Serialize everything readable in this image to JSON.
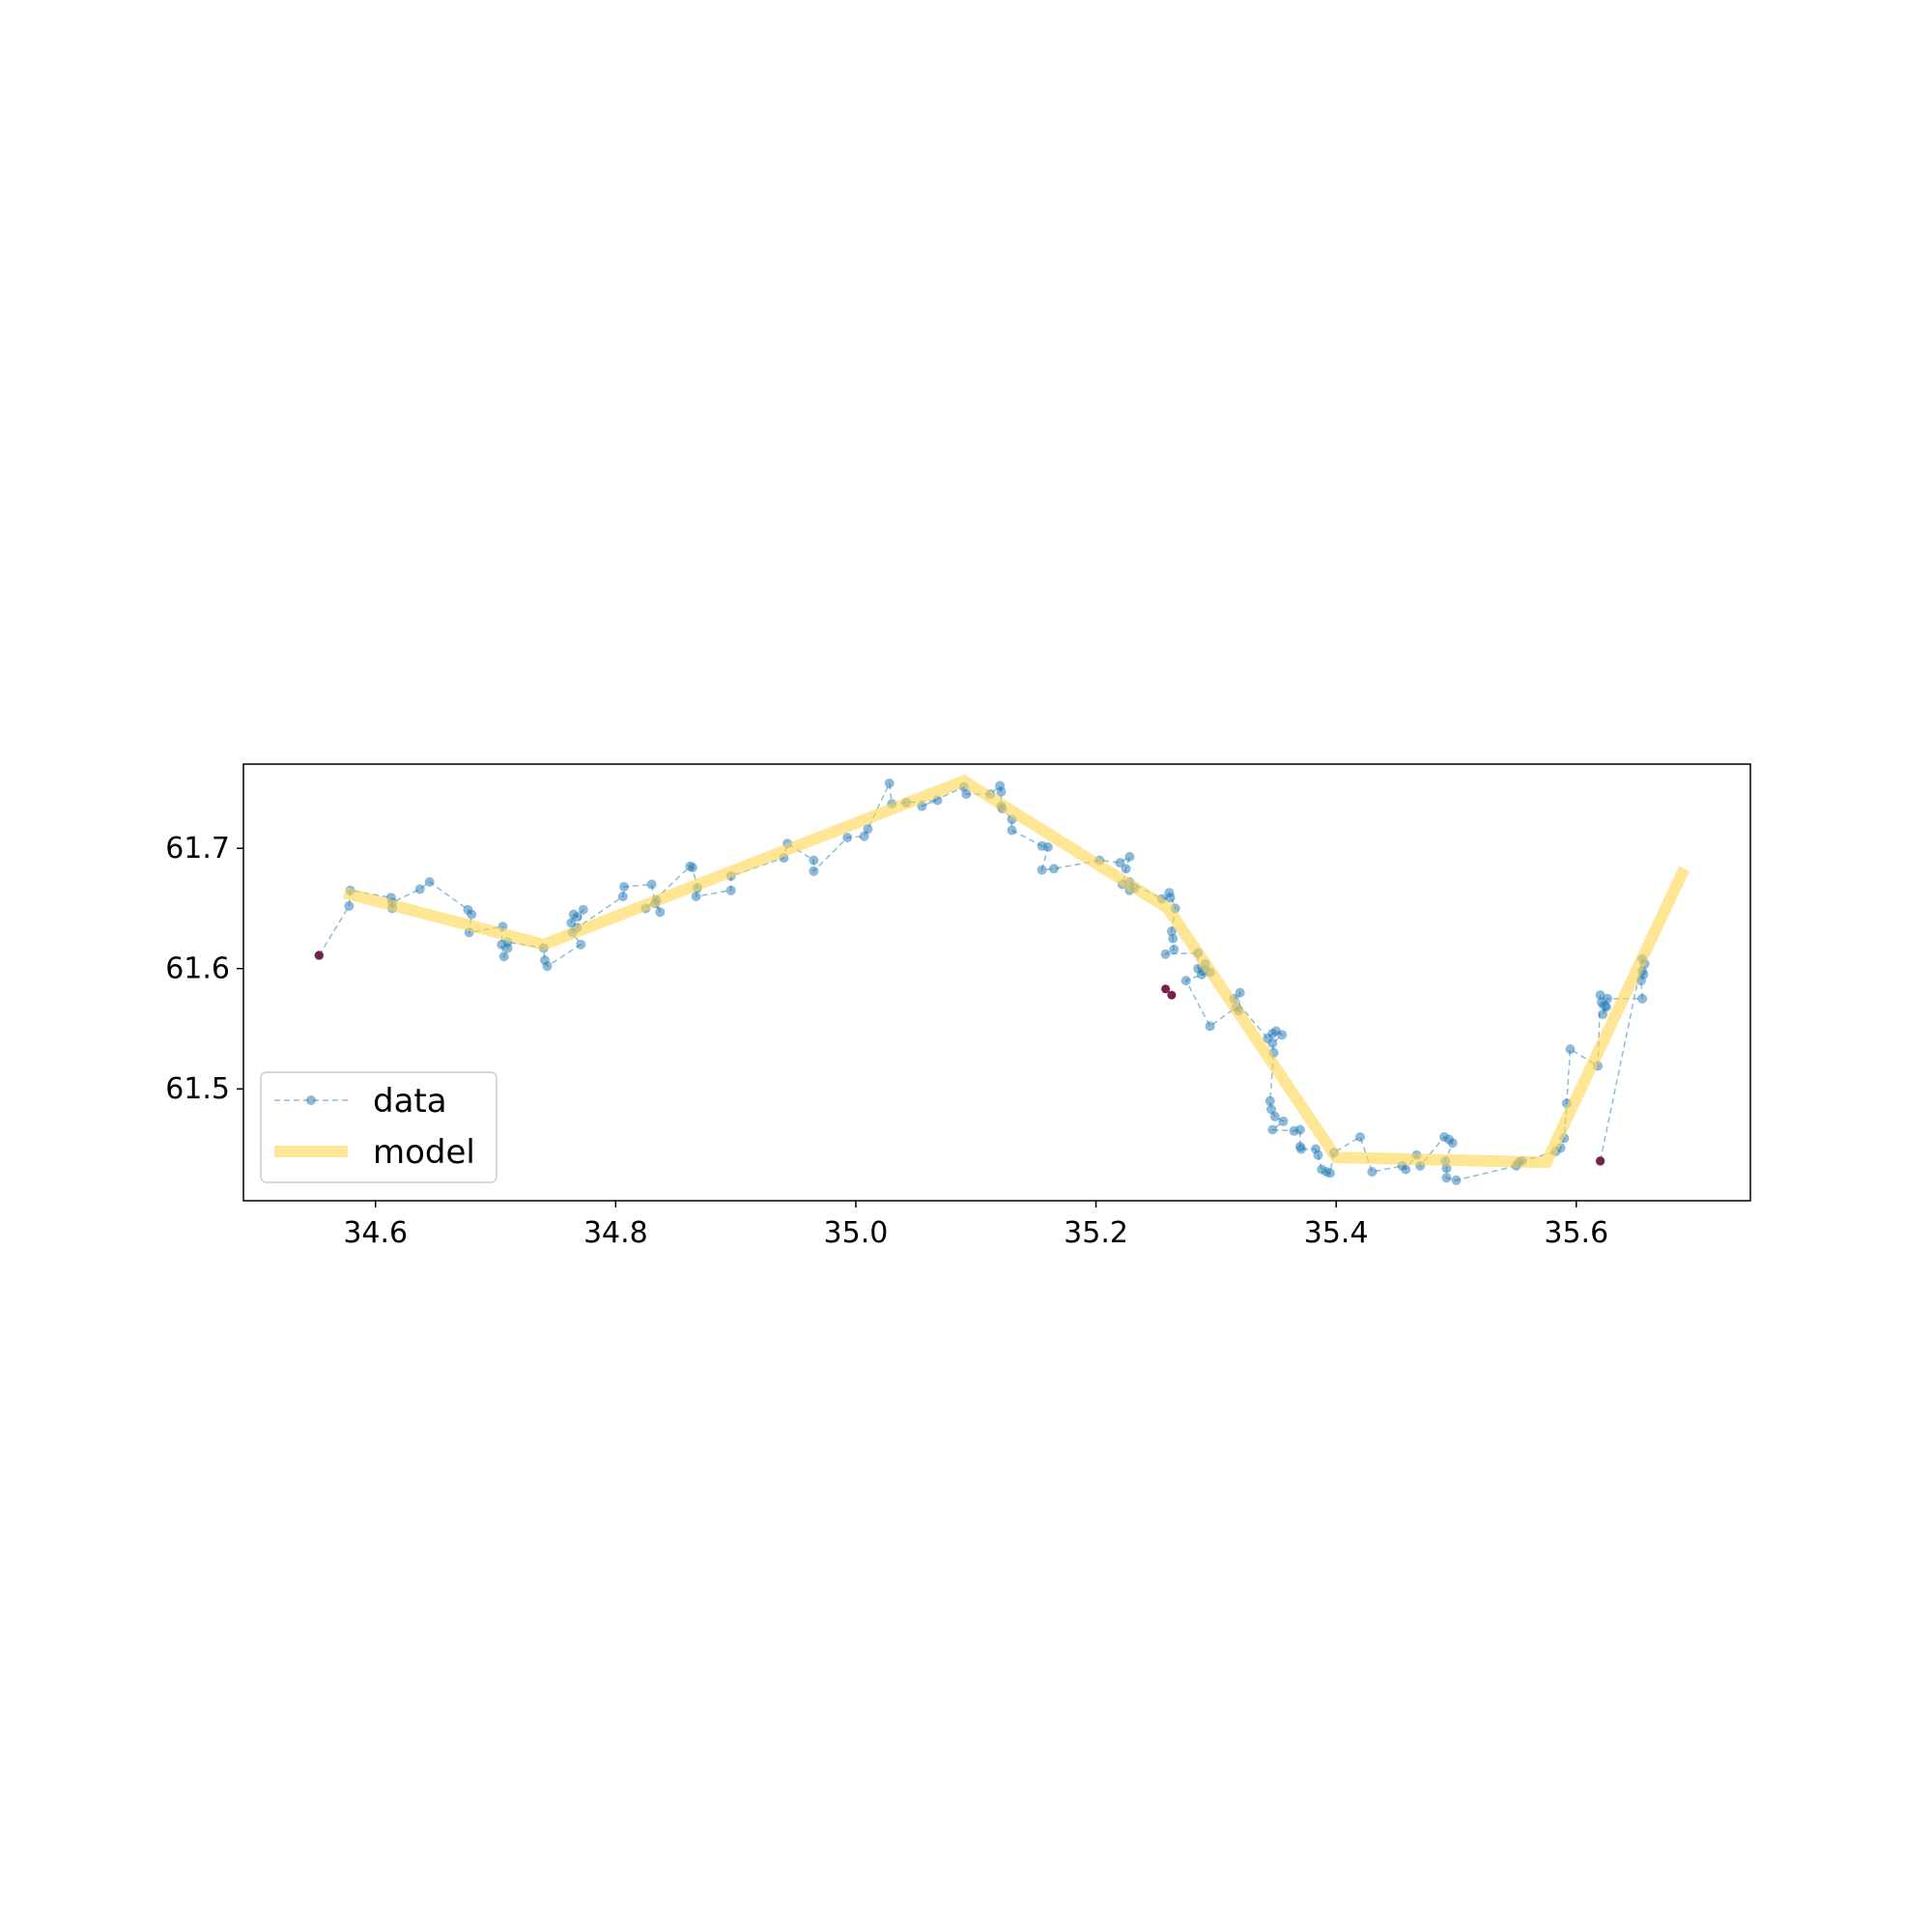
{
  "chart_data": {
    "type": "line",
    "title": "",
    "xlabel": "",
    "ylabel": "",
    "xlim": [
      34.49,
      35.745
    ],
    "ylim": [
      61.407,
      61.77
    ],
    "x_ticks": [
      34.6,
      34.8,
      35.0,
      35.2,
      35.4,
      35.6
    ],
    "x_tick_labels": [
      "34.6",
      "34.8",
      "35.0",
      "35.2",
      "35.4",
      "35.6"
    ],
    "y_ticks": [
      61.5,
      61.6,
      61.7
    ],
    "y_tick_labels": [
      "61.5",
      "61.6",
      "61.7"
    ],
    "grid": false,
    "legend": {
      "position": "lower-left",
      "entries": [
        "data",
        "model"
      ]
    },
    "colors": {
      "data": "#1f77b4",
      "model": "#ffd54f",
      "outliers": "#7b1f4b"
    },
    "series": [
      {
        "name": "data",
        "style": "dashed line with circle markers",
        "points": [
          [
            34.553,
            61.611
          ],
          [
            34.578,
            61.652
          ],
          [
            34.579,
            61.665
          ],
          [
            34.613,
            61.659
          ],
          [
            34.614,
            61.65
          ],
          [
            34.614,
            61.655
          ],
          [
            34.637,
            61.666
          ],
          [
            34.645,
            61.672
          ],
          [
            34.677,
            61.649
          ],
          [
            34.68,
            61.645
          ],
          [
            34.678,
            61.63
          ],
          [
            34.706,
            61.635
          ],
          [
            34.705,
            61.62
          ],
          [
            34.707,
            61.61
          ],
          [
            34.71,
            61.617
          ],
          [
            34.71,
            61.622
          ],
          [
            34.74,
            61.617
          ],
          [
            34.741,
            61.607
          ],
          [
            34.743,
            61.602
          ],
          [
            34.771,
            61.62
          ],
          [
            34.764,
            61.63
          ],
          [
            34.763,
            61.638
          ],
          [
            34.765,
            61.645
          ],
          [
            34.768,
            61.643
          ],
          [
            34.773,
            61.649
          ],
          [
            34.768,
            61.634
          ],
          [
            34.806,
            61.66
          ],
          [
            34.807,
            61.668
          ],
          [
            34.83,
            61.67
          ],
          [
            34.833,
            61.654
          ],
          [
            34.837,
            61.647
          ],
          [
            34.834,
            61.657
          ],
          [
            34.825,
            61.65
          ],
          [
            34.862,
            61.685
          ],
          [
            34.864,
            61.684
          ],
          [
            34.868,
            61.667
          ],
          [
            34.867,
            61.66
          ],
          [
            34.896,
            61.665
          ],
          [
            34.896,
            61.677
          ],
          [
            34.94,
            61.692
          ],
          [
            34.943,
            61.704
          ],
          [
            34.965,
            61.69
          ],
          [
            34.965,
            61.681
          ],
          [
            34.993,
            61.709
          ],
          [
            35.007,
            61.71
          ],
          [
            35.01,
            61.716
          ],
          [
            35.028,
            61.754
          ],
          [
            35.03,
            61.737
          ],
          [
            35.042,
            61.738
          ],
          [
            35.068,
            61.74
          ],
          [
            35.055,
            61.735
          ],
          [
            35.09,
            61.751
          ],
          [
            35.092,
            61.745
          ],
          [
            35.112,
            61.745
          ],
          [
            35.12,
            61.752
          ],
          [
            35.121,
            61.747
          ],
          [
            35.121,
            61.735
          ],
          [
            35.122,
            61.733
          ],
          [
            35.13,
            61.724
          ],
          [
            35.13,
            61.715
          ],
          [
            35.155,
            61.702
          ],
          [
            35.16,
            61.701
          ],
          [
            35.155,
            61.682
          ],
          [
            35.165,
            61.683
          ],
          [
            35.203,
            61.69
          ],
          [
            35.22,
            61.688
          ],
          [
            35.228,
            61.693
          ],
          [
            35.225,
            61.683
          ],
          [
            35.222,
            61.67
          ],
          [
            35.228,
            61.665
          ],
          [
            35.232,
            61.667
          ],
          [
            35.228,
            61.672
          ],
          [
            35.255,
            61.658
          ],
          [
            35.262,
            61.659
          ],
          [
            35.261,
            61.663
          ],
          [
            35.266,
            61.65
          ],
          [
            35.263,
            61.631
          ],
          [
            35.264,
            61.625
          ],
          [
            35.265,
            61.616
          ],
          [
            35.258,
            61.612
          ],
          [
            35.285,
            61.613
          ],
          [
            35.285,
            61.6
          ],
          [
            35.289,
            61.598
          ],
          [
            35.291,
            61.604
          ],
          [
            35.295,
            61.597
          ],
          [
            35.288,
            61.595
          ],
          [
            35.275,
            61.59
          ],
          [
            35.295,
            61.552
          ],
          [
            35.317,
            61.568
          ],
          [
            35.319,
            61.565
          ],
          [
            35.32,
            61.58
          ],
          [
            35.315,
            61.575
          ],
          [
            35.343,
            61.542
          ],
          [
            35.347,
            61.546
          ],
          [
            35.35,
            61.548
          ],
          [
            35.355,
            61.545
          ],
          [
            35.347,
            61.538
          ],
          [
            35.348,
            61.53
          ],
          [
            35.345,
            61.49
          ],
          [
            35.346,
            61.483
          ],
          [
            35.349,
            61.477
          ],
          [
            35.356,
            61.473
          ],
          [
            35.347,
            61.466
          ],
          [
            35.365,
            61.465
          ],
          [
            35.37,
            61.466
          ],
          [
            35.37,
            61.452
          ],
          [
            35.371,
            61.45
          ],
          [
            35.383,
            61.45
          ],
          [
            35.385,
            61.445
          ],
          [
            35.388,
            61.433
          ],
          [
            35.392,
            61.431
          ],
          [
            35.395,
            61.43
          ],
          [
            35.398,
            61.447
          ],
          [
            35.42,
            61.46
          ],
          [
            35.43,
            61.431
          ],
          [
            35.455,
            61.436
          ],
          [
            35.458,
            61.433
          ],
          [
            35.467,
            61.445
          ],
          [
            35.47,
            61.436
          ],
          [
            35.49,
            61.46
          ],
          [
            35.494,
            61.458
          ],
          [
            35.497,
            61.455
          ],
          [
            35.491,
            61.44
          ],
          [
            35.492,
            61.434
          ],
          [
            35.492,
            61.426
          ],
          [
            35.5,
            61.424
          ],
          [
            35.55,
            61.436
          ],
          [
            35.555,
            61.44
          ],
          [
            35.552,
            61.439
          ],
          [
            35.583,
            61.448
          ],
          [
            35.587,
            61.451
          ],
          [
            35.59,
            61.459
          ],
          [
            35.592,
            61.488
          ],
          [
            35.595,
            61.533
          ],
          [
            35.618,
            61.519
          ],
          [
            35.62,
            61.578
          ],
          [
            35.621,
            61.572
          ],
          [
            35.624,
            61.569
          ],
          [
            35.625,
            61.568
          ],
          [
            35.622,
            61.562
          ],
          [
            35.626,
            61.575
          ],
          [
            35.655,
            61.575
          ],
          [
            35.654,
            61.59
          ],
          [
            35.656,
            61.595
          ],
          [
            35.655,
            61.598
          ],
          [
            35.657,
            61.604
          ],
          [
            35.655,
            61.608
          ],
          [
            35.62,
            61.44
          ]
        ]
      },
      {
        "name": "model",
        "style": "thick translucent line",
        "points": [
          [
            34.574,
            61.663
          ],
          [
            34.74,
            61.62
          ],
          [
            35.09,
            61.756
          ],
          [
            35.26,
            61.65
          ],
          [
            35.4,
            61.443
          ],
          [
            35.575,
            61.439
          ],
          [
            35.69,
            61.683
          ]
        ]
      },
      {
        "name": "outliers",
        "style": "solid markers",
        "points": [
          [
            34.553,
            61.611
          ],
          [
            35.258,
            61.583
          ],
          [
            35.263,
            61.578
          ],
          [
            35.62,
            61.44
          ]
        ]
      }
    ]
  }
}
